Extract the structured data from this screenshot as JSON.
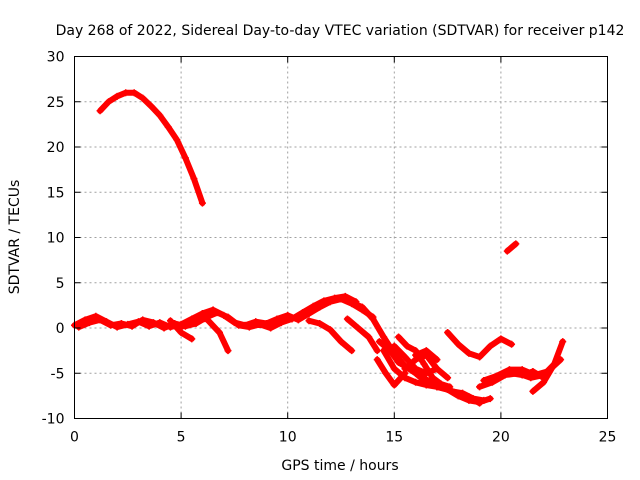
{
  "chart_data": {
    "type": "scatter",
    "title": "Day 268 of 2022, Sidereal Day-to-day VTEC variation (SDTVAR) for receiver p142",
    "xlabel": "GPS time / hours",
    "ylabel": "SDTVAR / TECUs",
    "xlim": [
      0,
      25
    ],
    "ylim": [
      -10,
      30
    ],
    "xticks": [
      0,
      5,
      10,
      15,
      20,
      25
    ],
    "yticks": [
      -10,
      -5,
      0,
      5,
      10,
      15,
      20,
      25,
      30
    ],
    "grid": true,
    "color": "#ff0000",
    "series": [
      {
        "name": "track-early-high",
        "x": [
          1.2,
          1.6,
          2.0,
          2.4,
          2.8,
          3.2,
          3.6,
          4.0,
          4.4,
          4.8,
          5.2,
          5.6,
          6.0
        ],
        "y": [
          24.0,
          25.0,
          25.6,
          26.0,
          26.0,
          25.4,
          24.5,
          23.5,
          22.2,
          20.8,
          18.8,
          16.5,
          13.8
        ]
      },
      {
        "name": "track-base-1",
        "x": [
          0.0,
          0.5,
          1.0,
          1.5,
          2.0,
          2.5,
          3.0,
          3.5,
          4.0,
          4.5,
          5.0,
          5.5,
          6.0,
          6.5,
          7.0,
          7.5,
          8.0,
          8.5,
          9.0,
          9.5,
          10.0,
          10.5,
          11.0,
          11.5,
          12.0,
          12.5,
          13.0,
          13.5,
          14.0
        ],
        "y": [
          0.3,
          0.9,
          1.3,
          0.7,
          0.1,
          0.4,
          0.7,
          0.2,
          0.6,
          0.1,
          0.4,
          1.0,
          1.6,
          2.0,
          1.4,
          0.6,
          0.3,
          0.7,
          0.5,
          1.0,
          1.4,
          0.9,
          1.6,
          2.3,
          2.9,
          3.2,
          2.7,
          2.0,
          1.2
        ]
      },
      {
        "name": "track-base-2",
        "x": [
          0.2,
          0.7,
          1.2,
          1.7,
          2.2,
          2.7,
          3.2,
          3.7,
          4.2,
          4.7,
          5.2,
          5.7,
          6.2,
          6.7,
          7.2,
          7.7,
          8.2,
          8.7,
          9.2,
          9.7,
          10.2,
          10.7,
          11.2,
          11.7,
          12.2,
          12.7,
          13.2
        ],
        "y": [
          0.1,
          0.6,
          0.9,
          0.3,
          0.5,
          0.2,
          0.9,
          0.6,
          0.0,
          0.5,
          0.2,
          0.5,
          1.2,
          1.7,
          1.2,
          0.3,
          0.1,
          0.4,
          0.0,
          0.6,
          1.0,
          1.7,
          2.4,
          3.0,
          3.3,
          3.5,
          2.9
        ]
      },
      {
        "name": "track-dip-a",
        "x": [
          5.0,
          5.6,
          6.2,
          6.8,
          7.2
        ],
        "y": [
          0.1,
          0.9,
          1.0,
          -0.5,
          -2.5
        ]
      },
      {
        "name": "track-dip-b",
        "x": [
          4.5,
          5.0,
          5.5
        ],
        "y": [
          0.8,
          -0.5,
          -1.2
        ]
      },
      {
        "name": "track-dip-c",
        "x": [
          11.0,
          11.5,
          12.0,
          12.5,
          13.0
        ],
        "y": [
          0.8,
          0.5,
          -0.2,
          -1.5,
          -2.5
        ]
      },
      {
        "name": "track-dip-d",
        "x": [
          12.8,
          13.3,
          13.8,
          14.2
        ],
        "y": [
          1.0,
          0.0,
          -1.0,
          -2.5
        ]
      },
      {
        "name": "track-decline-1",
        "x": [
          13.0,
          13.5,
          14.0,
          14.5,
          15.0,
          15.5,
          16.0,
          16.5,
          17.0,
          17.5,
          18.0,
          18.5,
          19.0,
          19.5
        ],
        "y": [
          2.8,
          2.3,
          1.0,
          -1.0,
          -2.8,
          -4.2,
          -5.0,
          -6.0,
          -6.5,
          -6.8,
          -7.5,
          -8.0,
          -8.2,
          -7.8
        ]
      },
      {
        "name": "track-decline-2",
        "x": [
          14.3,
          14.8,
          15.2,
          15.7,
          16.2,
          16.7,
          17.2,
          17.7,
          18.2,
          18.7,
          19.2
        ],
        "y": [
          -1.5,
          -2.5,
          -3.8,
          -4.5,
          -5.2,
          -6.0,
          -6.5,
          -7.0,
          -7.2,
          -7.8,
          -8.0
        ]
      },
      {
        "name": "track-decline-3",
        "x": [
          14.5,
          15.0,
          15.5,
          16.0,
          16.5,
          17.0,
          17.5,
          18.0,
          18.5,
          19.0
        ],
        "y": [
          -2.5,
          -4.5,
          -5.5,
          -6.0,
          -6.3,
          -6.5,
          -6.8,
          -7.2,
          -7.6,
          -8.3
        ]
      },
      {
        "name": "track-decline-4",
        "x": [
          14.2,
          14.6,
          15.0,
          15.5
        ],
        "y": [
          -3.5,
          -5.0,
          -6.3,
          -5.0
        ]
      },
      {
        "name": "track-decline-5",
        "x": [
          15.2,
          15.6,
          16.0,
          16.4,
          16.8,
          17.2,
          17.6
        ],
        "y": [
          -1.0,
          -2.0,
          -2.5,
          -4.0,
          -5.5,
          -6.2,
          -6.5
        ]
      },
      {
        "name": "track-decline-6",
        "x": [
          15.0,
          15.5,
          16.0,
          16.5,
          17.0,
          17.5
        ],
        "y": [
          -2.0,
          -3.2,
          -4.5,
          -5.0,
          -4.5,
          -5.5
        ]
      },
      {
        "name": "track-hump-1",
        "x": [
          16.0,
          16.5,
          17.0
        ],
        "y": [
          -3.0,
          -2.5,
          -3.5
        ]
      },
      {
        "name": "track-hump-2",
        "x": [
          15.5,
          16.0,
          16.5,
          17.0
        ],
        "y": [
          -4.5,
          -3.5,
          -3.0,
          -4.5
        ]
      },
      {
        "name": "track-dip-mid",
        "x": [
          17.5,
          18.0,
          18.5,
          19.0,
          19.5,
          20.0,
          20.5
        ],
        "y": [
          -0.5,
          -1.8,
          -2.8,
          -3.2,
          -2.0,
          -1.2,
          -1.8
        ]
      },
      {
        "name": "track-late-1",
        "x": [
          19.2,
          19.8,
          20.4,
          21.0,
          21.6,
          22.2,
          22.8
        ],
        "y": [
          -5.8,
          -5.3,
          -4.6,
          -4.6,
          -5.2,
          -4.8,
          -3.5
        ]
      },
      {
        "name": "track-late-2",
        "x": [
          19.0,
          19.6,
          20.2,
          20.8,
          21.4,
          22.0,
          22.5
        ],
        "y": [
          -6.5,
          -6.0,
          -5.2,
          -5.0,
          -5.5,
          -5.2,
          -4.0
        ]
      },
      {
        "name": "track-late-3",
        "x": [
          21.5,
          22.0,
          22.5,
          22.9
        ],
        "y": [
          -7.0,
          -6.0,
          -4.0,
          -1.5
        ]
      },
      {
        "name": "track-late-4",
        "x": [
          20.5,
          21.0,
          21.5,
          22.0
        ],
        "y": [
          -5.0,
          -5.2,
          -4.8,
          -5.5
        ]
      },
      {
        "name": "track-isolated",
        "x": [
          20.3,
          20.7
        ],
        "y": [
          8.5,
          9.3
        ]
      }
    ]
  }
}
